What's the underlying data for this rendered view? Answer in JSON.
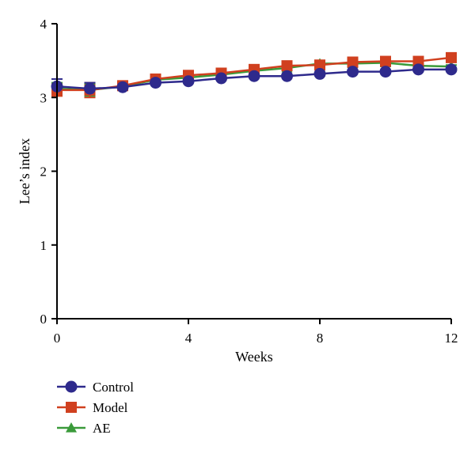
{
  "chart_data": {
    "type": "line",
    "xlabel": "Weeks",
    "ylabel": "Lee’s index",
    "xlim": [
      0,
      12
    ],
    "ylim": [
      0,
      4
    ],
    "x_ticks": [
      "0",
      "4",
      "8",
      "12"
    ],
    "y_ticks": [
      "0",
      "1",
      "2",
      "3",
      "4"
    ],
    "grid": false,
    "legend_position": "bottom-left",
    "x": [
      0,
      1,
      2,
      3,
      4,
      5,
      6,
      7,
      8,
      9,
      10,
      11,
      12
    ],
    "series": [
      {
        "name": "Control",
        "color": "#2e2a8c",
        "marker": "circle",
        "values": [
          3.15,
          3.12,
          3.14,
          3.2,
          3.22,
          3.26,
          3.29,
          3.29,
          3.32,
          3.35,
          3.35,
          3.38,
          3.38
        ],
        "errors": [
          0.1,
          0.08,
          0.03,
          0.02,
          0.02,
          0.02,
          0.02,
          0.02,
          0.02,
          0.02,
          0.02,
          0.02,
          0.02
        ]
      },
      {
        "name": "Model",
        "color": "#d0401f",
        "marker": "square",
        "values": [
          3.1,
          3.1,
          3.16,
          3.25,
          3.3,
          3.33,
          3.38,
          3.43,
          3.44,
          3.48,
          3.49,
          3.49,
          3.54
        ],
        "errors": [
          0.08,
          0.1,
          0.03,
          0.02,
          0.02,
          0.02,
          0.02,
          0.02,
          0.02,
          0.02,
          0.02,
          0.02,
          0.02
        ]
      },
      {
        "name": "AE",
        "color": "#3a9a3a",
        "marker": "triangle",
        "values": [
          3.12,
          3.1,
          3.15,
          3.24,
          3.27,
          3.31,
          3.36,
          3.4,
          3.46,
          3.46,
          3.47,
          3.43,
          3.42
        ],
        "errors": [
          0.08,
          0.08,
          0.03,
          0.02,
          0.02,
          0.02,
          0.02,
          0.02,
          0.02,
          0.02,
          0.02,
          0.02,
          0.02
        ]
      }
    ]
  }
}
